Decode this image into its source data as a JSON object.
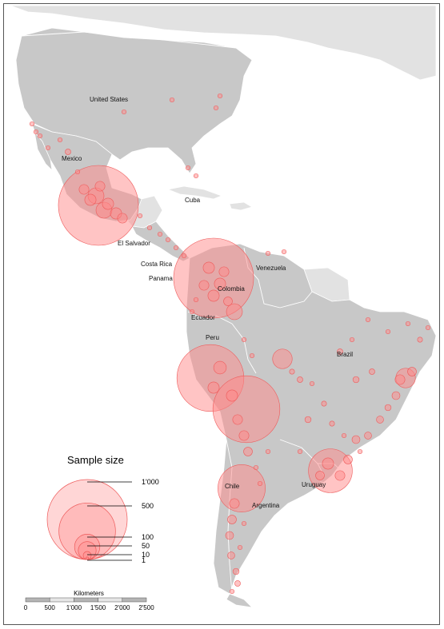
{
  "countries": [
    {
      "name": "United States"
    },
    {
      "name": "Mexico"
    },
    {
      "name": "Cuba"
    },
    {
      "name": "El Salvador"
    },
    {
      "name": "Costa Rica"
    },
    {
      "name": "Panama"
    },
    {
      "name": "Colombia"
    },
    {
      "name": "Venezuela"
    },
    {
      "name": "Ecuador"
    },
    {
      "name": "Peru"
    },
    {
      "name": "Brazil"
    },
    {
      "name": "Chile"
    },
    {
      "name": "Uruguay"
    },
    {
      "name": "Argentina"
    }
  ],
  "legend": {
    "title": "Sample size",
    "entries": [
      {
        "value": 1000,
        "label": "1'000"
      },
      {
        "value": 500,
        "label": "500"
      },
      {
        "value": 100,
        "label": "100"
      },
      {
        "value": 50,
        "label": "50"
      },
      {
        "value": 10,
        "label": "10"
      },
      {
        "value": 1,
        "label": "1"
      }
    ]
  },
  "scale_bar": {
    "title": "Kilometers",
    "ticks": [
      "0",
      "500",
      "1'000",
      "1'500",
      "2'000",
      "2'500"
    ]
  },
  "colors": {
    "land_sampled": "#c8c8c8",
    "land_other": "#e2e2e2",
    "border": "#ffffff",
    "bubble_fill": "#ff8a8a",
    "bubble_stroke": "#ee5b5b"
  }
}
